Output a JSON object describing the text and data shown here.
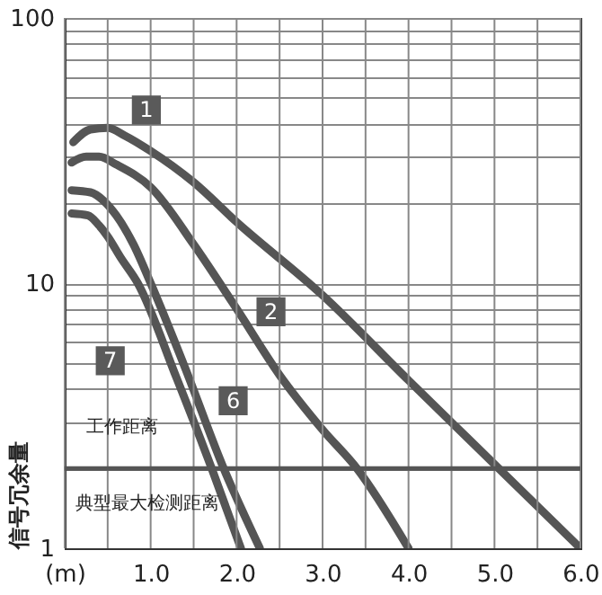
{
  "chart_data": {
    "type": "line",
    "ylabel": "信号冗余量",
    "log": "y",
    "grid": true,
    "line_style": "solid",
    "marker": "none",
    "xlim": [
      0,
      6
    ],
    "ylim": [
      1,
      100
    ],
    "xticks": [
      {
        "value": 0,
        "label": "(m)"
      },
      {
        "value": 0.5,
        "label": null
      },
      {
        "value": 1,
        "label": "1.0"
      },
      {
        "value": 1.5,
        "label": null
      },
      {
        "value": 2,
        "label": "2.0"
      },
      {
        "value": 2.5,
        "label": null
      },
      {
        "value": 3,
        "label": "3.0"
      },
      {
        "value": 3.5,
        "label": null
      },
      {
        "value": 4,
        "label": "4.0"
      },
      {
        "value": 4.5,
        "label": null
      },
      {
        "value": 5,
        "label": "5.0"
      },
      {
        "value": 5.5,
        "label": null
      },
      {
        "value": 6,
        "label": "6.0"
      }
    ],
    "yticks": [
      1,
      {
        "value": 2,
        "label": null
      },
      {
        "value": 3,
        "label": null
      },
      {
        "value": 4,
        "label": null
      },
      {
        "value": 5,
        "label": null
      },
      {
        "value": 6,
        "label": null
      },
      {
        "value": 7,
        "label": null
      },
      {
        "value": 8,
        "label": null
      },
      {
        "value": 9,
        "label": null
      },
      10,
      {
        "value": 20,
        "label": null
      },
      {
        "value": 30,
        "label": null
      },
      {
        "value": 40,
        "label": null
      },
      {
        "value": 50,
        "label": null
      },
      {
        "value": 60,
        "label": null
      },
      {
        "value": 70,
        "label": null
      },
      {
        "value": 80,
        "label": null
      },
      {
        "value": 90,
        "label": null
      },
      100
    ],
    "series": [
      {
        "color": "#555555",
        "x": [
          0.1,
          0.3,
          0.5,
          0.7,
          1.0,
          1.5,
          2.0,
          3.0,
          4.0,
          5.05,
          6.0
        ],
        "values": [
          34,
          38,
          38.5,
          36,
          31.5,
          24,
          17,
          9,
          4.3,
          2,
          1
        ]
      },
      {
        "color": "#555555",
        "x": [
          0.08,
          0.25,
          0.4,
          0.6,
          1.0,
          1.5,
          2.0,
          2.5,
          3.0,
          3.4,
          4.0
        ],
        "values": [
          28.5,
          30,
          30,
          28,
          23,
          14,
          8,
          4.5,
          2.8,
          2,
          1
        ]
      },
      {
        "color": "#555555",
        "x": [
          0.08,
          0.3,
          0.45,
          0.6,
          0.8,
          1.0,
          1.4,
          1.85,
          2.27
        ],
        "values": [
          22.4,
          22,
          20.5,
          18,
          14,
          10,
          4.8,
          2,
          1
        ]
      },
      {
        "color": "#555555",
        "x": [
          0.08,
          0.27,
          0.4,
          0.5,
          0.65,
          0.85,
          1.3,
          1.71,
          2.05
        ],
        "values": [
          18.3,
          18,
          16.5,
          15,
          12.5,
          10,
          4.4,
          2,
          1
        ]
      }
    ],
    "ref_lines": [
      {
        "axis": "y",
        "value": 2,
        "label": "工作距离",
        "color": "#555555"
      }
    ],
    "annotations": [
      {
        "text": "1",
        "x": 0.95,
        "y": 45
      },
      {
        "text": "2",
        "x": 2.4,
        "y": 7.8
      },
      {
        "text": "6",
        "x": 1.96,
        "y": 3.6
      },
      {
        "text": "7",
        "x": 0.53,
        "y": 5.1
      },
      "典型最大检测距离"
    ]
  }
}
